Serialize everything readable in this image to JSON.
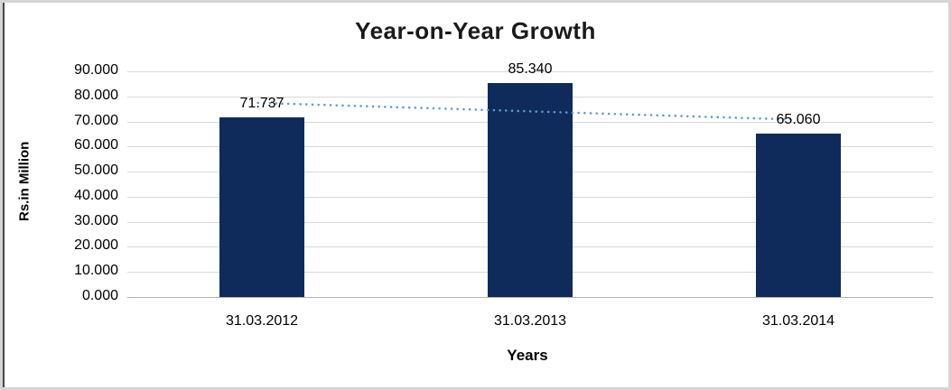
{
  "chart_data": {
    "type": "bar",
    "title": "Year-on-Year Growth",
    "xlabel": "Years",
    "ylabel": "Rs.in Million",
    "categories": [
      "31.03.2012",
      "31.03.2013",
      "31.03.2014"
    ],
    "values": [
      71.737,
      85.34,
      65.06
    ],
    "data_labels": [
      "71.737",
      "85.340",
      "65.060"
    ],
    "ylim": [
      0,
      90
    ],
    "ytick_step": 10,
    "ytick_labels": [
      "0.000",
      "10.000",
      "20.000",
      "30.000",
      "40.000",
      "50.000",
      "60.000",
      "70.000",
      "80.000",
      "90.000"
    ],
    "grid": true,
    "legend_position": "none",
    "bar_color": "#0F2B5C",
    "trendline": {
      "type": "linear",
      "style": "dotted",
      "color": "#5B9BD5",
      "values_at_categories": [
        77.38,
        74.05,
        70.71
      ]
    }
  },
  "colors": {
    "background": "#FFFFFF",
    "frame_border": "#D5D5D5",
    "left_edge_line": "#454545",
    "gridline": "#D9D9D9",
    "axis_line": "#B3B3B3",
    "text": "#000000"
  }
}
